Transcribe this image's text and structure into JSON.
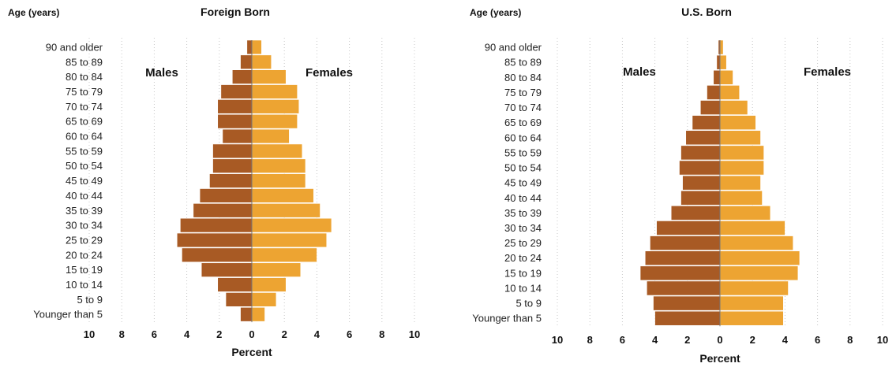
{
  "colors": {
    "males": "#a85a24",
    "females": "#eda432",
    "grid": "#c8c8c8"
  },
  "chart_data": [
    {
      "type": "bar",
      "orientation": "horizontal-population-pyramid",
      "title": "Foreign Born",
      "age_header": "Age (years)",
      "xlabel": "Percent",
      "xlim": [
        -10,
        10
      ],
      "xticks": [
        "10",
        "8",
        "6",
        "4",
        "2",
        "0",
        "2",
        "4",
        "6",
        "8",
        "10"
      ],
      "grid": true,
      "categories": [
        "90 and older",
        "85 to 89",
        "80 to 84",
        "75 to 79",
        "70 to 74",
        "65 to 69",
        "60 to 64",
        "55 to 59",
        "50 to 54",
        "45 to 49",
        "40 to 44",
        "35 to 39",
        "30 to 34",
        "25 to 29",
        "20 to 24",
        "15 to 19",
        "10 to 14",
        "5 to 9",
        "Younger than 5"
      ],
      "series": [
        {
          "name": "Males",
          "values": [
            0.3,
            0.7,
            1.2,
            1.9,
            2.1,
            2.1,
            1.8,
            2.4,
            2.4,
            2.6,
            3.2,
            3.6,
            4.4,
            4.6,
            4.3,
            3.1,
            2.1,
            1.6,
            0.7
          ]
        },
        {
          "name": "Females",
          "values": [
            0.6,
            1.2,
            2.1,
            2.8,
            2.9,
            2.8,
            2.3,
            3.1,
            3.3,
            3.3,
            3.8,
            4.2,
            4.9,
            4.6,
            4.0,
            3.0,
            2.1,
            1.5,
            0.8
          ]
        }
      ]
    },
    {
      "type": "bar",
      "orientation": "horizontal-population-pyramid",
      "title": "U.S. Born",
      "age_header": "Age (years)",
      "xlabel": "Percent",
      "xlim": [
        -10,
        10
      ],
      "xticks": [
        "10",
        "8",
        "6",
        "4",
        "2",
        "0",
        "2",
        "4",
        "6",
        "8",
        "10"
      ],
      "grid": true,
      "categories": [
        "90 and older",
        "85 to 89",
        "80 to 84",
        "75 to 79",
        "70 to 74",
        "65 to 69",
        "60 to 64",
        "55 to 59",
        "50 to 54",
        "45 to 49",
        "40 to 44",
        "35 to 39",
        "30 to 34",
        "25 to 29",
        "20 to 24",
        "15 to 19",
        "10 to 14",
        "5 to 9",
        "Younger than 5"
      ],
      "series": [
        {
          "name": "Males",
          "values": [
            0.1,
            0.2,
            0.4,
            0.8,
            1.2,
            1.7,
            2.1,
            2.4,
            2.5,
            2.3,
            2.4,
            3.0,
            3.9,
            4.3,
            4.6,
            4.9,
            4.5,
            4.1,
            4.0
          ]
        },
        {
          "name": "Females",
          "values": [
            0.2,
            0.4,
            0.8,
            1.2,
            1.7,
            2.2,
            2.5,
            2.7,
            2.7,
            2.5,
            2.6,
            3.1,
            4.0,
            4.5,
            4.9,
            4.8,
            4.2,
            3.9,
            3.9
          ]
        }
      ]
    }
  ]
}
